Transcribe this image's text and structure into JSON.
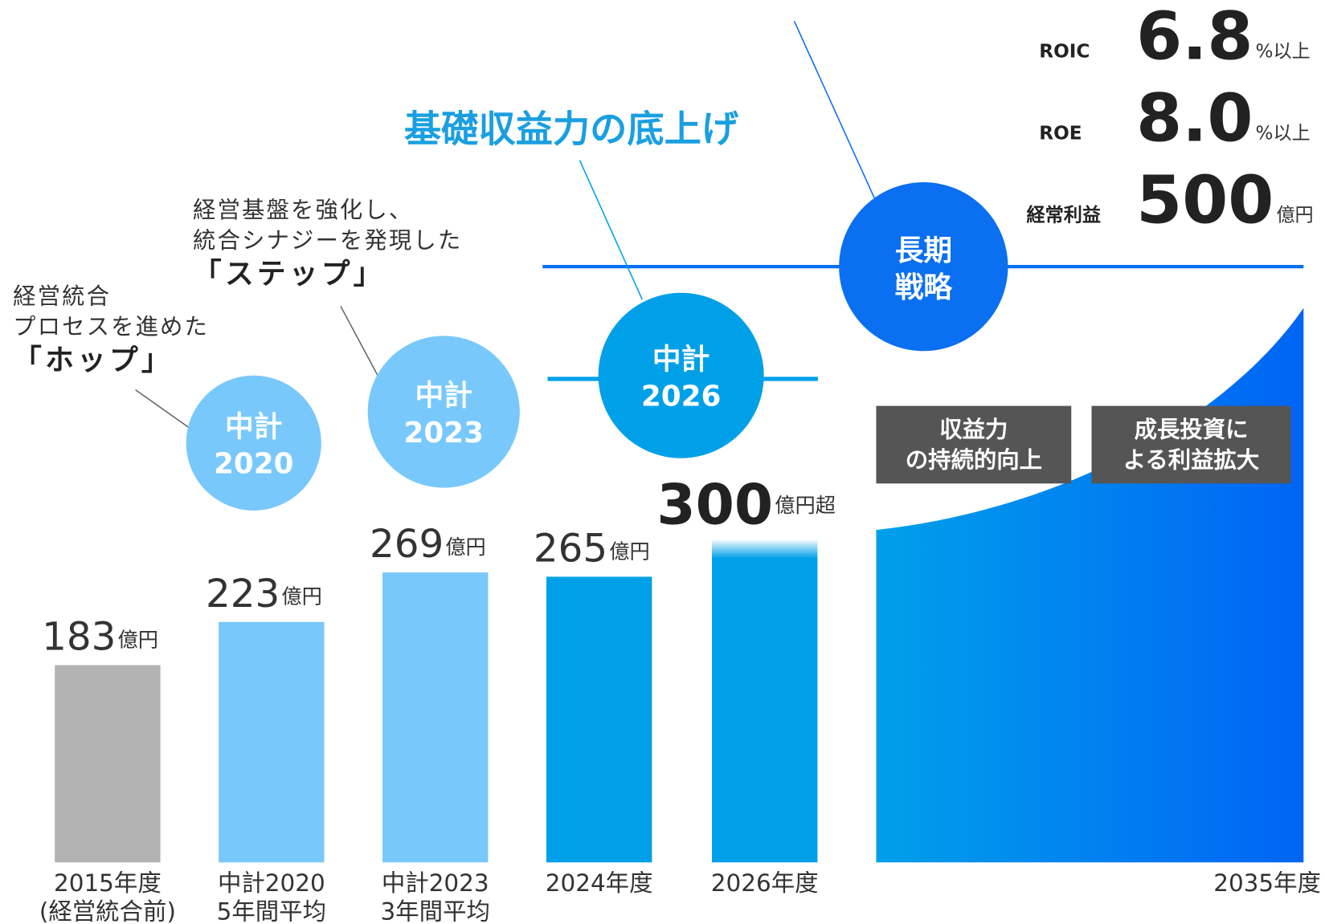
{
  "chart_data": {
    "type": "bar",
    "categories": [
      "2015年度",
      "中計2020",
      "中計2023",
      "2024年度",
      "2026年度"
    ],
    "category_sublabels": [
      "(経営統合前)",
      "5年間平均",
      "3年間平均",
      null,
      null
    ],
    "values": [
      183,
      223,
      269,
      265,
      300
    ],
    "value_units": [
      "億円",
      "億円",
      "億円",
      "億円",
      "億円超"
    ],
    "colors": [
      "#b3b3b3",
      "#79c8fb",
      "#79c8fb",
      "#00a0e9",
      "#00a0e9"
    ],
    "ylim": [
      0,
      800
    ],
    "area_label": "2035年度"
  },
  "heading": "基礎収益力の底上げ",
  "annotations": [
    {
      "lines": [
        "経営統合",
        "プロセスを進めた"
      ],
      "emphasis": "「ホップ」"
    },
    {
      "lines": [
        "経営基盤を強化し、",
        "統合シナジーを発現した"
      ],
      "emphasis": "「ステップ」"
    }
  ],
  "plans": [
    [
      "中計",
      "2020"
    ],
    [
      "中計",
      "2023"
    ],
    [
      "中計",
      "2026"
    ],
    [
      "長期",
      "戦略"
    ]
  ],
  "targets": [
    {
      "label": "ROIC",
      "value": "6.8",
      "unit": "%以上"
    },
    {
      "label": "ROE",
      "value": "8.0",
      "unit": "%以上"
    },
    {
      "label": "経常利益",
      "value": "500",
      "unit": "億円"
    }
  ],
  "boxes": [
    [
      "収益力",
      "の持続的向上"
    ],
    [
      "成長投資に",
      "よる利益拡大"
    ]
  ]
}
